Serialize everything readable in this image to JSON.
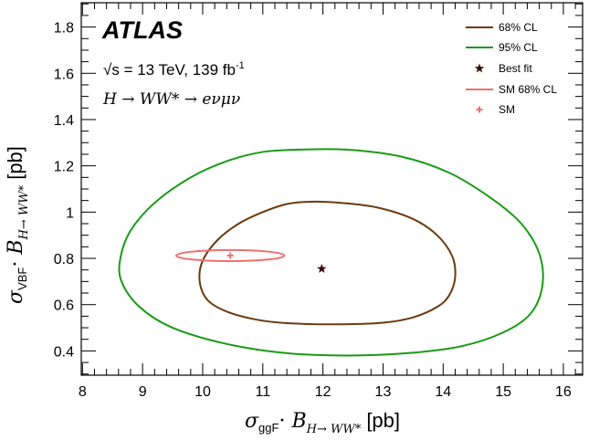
{
  "chart_data": {
    "type": "scatter",
    "xlabel": {
      "main": "σ",
      "sub1": "ggF",
      "dot": "· ",
      "B": "B",
      "sub2": "H→ WW*",
      "unit": " [pb]"
    },
    "ylabel": {
      "main": "σ",
      "sub1": "VBF",
      "dot": "· ",
      "B": "B",
      "sub2": "H→ WW*",
      "unit": " [pb]"
    },
    "xlim": [
      7.98,
      16.32
    ],
    "ylim": [
      0.295,
      1.905
    ],
    "x_ticks": [
      8,
      9,
      10,
      11,
      12,
      13,
      14,
      15,
      16
    ],
    "y_ticks": [
      0.4,
      0.6,
      0.8,
      1,
      1.2,
      1.4,
      1.6,
      1.8
    ],
    "x_tick_labels": [
      "8",
      "9",
      "10",
      "11",
      "12",
      "13",
      "14",
      "15",
      "16"
    ],
    "y_tick_labels": [
      "0.4",
      "0.6",
      "0.8",
      "1",
      "1.2",
      "1.4",
      "1.6",
      "1.8"
    ],
    "grid": false,
    "legend_position": "top-right",
    "annotations": {
      "experiment": "ATLAS",
      "sqrt": "√s",
      "energy": " = 13 TeV, 139 fb",
      "lumi_exp": "-1",
      "process": "H → WW* → eνμν"
    },
    "series": [
      {
        "name": "68% CL",
        "kind": "contour",
        "color": "#6b3a10",
        "points": [
          [
            14.2,
            0.72
          ],
          [
            14.1,
            0.64
          ],
          [
            13.9,
            0.59
          ],
          [
            13.5,
            0.545
          ],
          [
            13.0,
            0.522
          ],
          [
            12.2,
            0.515
          ],
          [
            11.4,
            0.52
          ],
          [
            10.9,
            0.535
          ],
          [
            10.4,
            0.57
          ],
          [
            10.08,
            0.62
          ],
          [
            9.95,
            0.7
          ],
          [
            10.0,
            0.79
          ],
          [
            10.25,
            0.88
          ],
          [
            10.6,
            0.95
          ],
          [
            11.0,
            1.0
          ],
          [
            11.4,
            1.035
          ],
          [
            11.8,
            1.045
          ],
          [
            12.3,
            1.04
          ],
          [
            12.9,
            1.02
          ],
          [
            13.5,
            0.97
          ],
          [
            13.9,
            0.9
          ],
          [
            14.15,
            0.81
          ],
          [
            14.2,
            0.72
          ]
        ]
      },
      {
        "name": "95% CL",
        "kind": "contour",
        "color": "#1a9a16",
        "points": [
          [
            15.65,
            0.68
          ],
          [
            15.45,
            0.56
          ],
          [
            15.0,
            0.48
          ],
          [
            14.3,
            0.42
          ],
          [
            13.4,
            0.39
          ],
          [
            12.4,
            0.38
          ],
          [
            11.4,
            0.39
          ],
          [
            10.4,
            0.43
          ],
          [
            9.5,
            0.5
          ],
          [
            8.95,
            0.59
          ],
          [
            8.65,
            0.7
          ],
          [
            8.63,
            0.8
          ],
          [
            8.8,
            0.92
          ],
          [
            9.2,
            1.04
          ],
          [
            9.8,
            1.15
          ],
          [
            10.4,
            1.22
          ],
          [
            11.0,
            1.26
          ],
          [
            11.6,
            1.27
          ],
          [
            12.4,
            1.27
          ],
          [
            13.3,
            1.24
          ],
          [
            14.1,
            1.17
          ],
          [
            14.8,
            1.06
          ],
          [
            15.3,
            0.95
          ],
          [
            15.6,
            0.82
          ],
          [
            15.65,
            0.68
          ]
        ]
      },
      {
        "name": "Best fit",
        "kind": "marker",
        "marker": "star",
        "color": "#3a0c0c",
        "points": [
          [
            11.98,
            0.755
          ]
        ]
      },
      {
        "name": "SM 68% CL",
        "kind": "ellipse",
        "color": "#ef6f6f",
        "center": [
          10.46,
          0.812
        ],
        "radius": [
          0.9,
          0.024
        ]
      },
      {
        "name": "SM",
        "kind": "marker",
        "marker": "cross",
        "color": "#ef6f6f",
        "points": [
          [
            10.46,
            0.812
          ]
        ]
      }
    ]
  }
}
